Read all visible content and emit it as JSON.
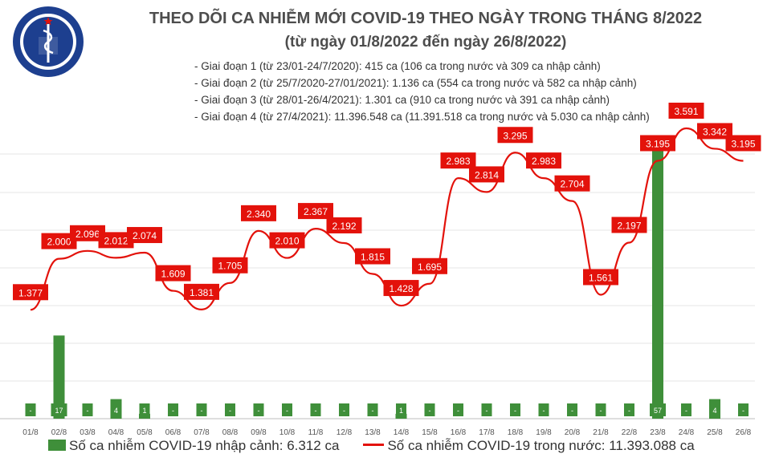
{
  "logo": {
    "top_text": "BỘ Y TẾ",
    "bottom_text": "MINISTRY OF HEALTH"
  },
  "title": {
    "line1": "THEO DÕI CA NHIỄM MỚI COVID-19 THEO NGÀY TRONG THÁNG 8/2022",
    "line2": "(từ ngày 01/8/2022 đến ngày 26/8/2022)"
  },
  "stages": [
    "- Giai đoạn 1 (từ 23/01-24/7/2020): 415 ca (106 ca trong nước và 309 ca nhập cảnh)",
    "- Giai đoạn 2 (từ 25/7/2020-27/01/2021): 1.136 ca (554 ca trong nước và 582 ca nhập cảnh)",
    "- Giai đoạn 3 (từ 28/01-26/4/2021): 1.301 ca (910 ca trong nước và 391 ca nhập cảnh)",
    "- Giai đoạn 4 (từ 27/4/2021): 11.396.548 ca (11.391.518 ca trong nước và 5.030 ca nhập cảnh)"
  ],
  "legend": {
    "imported": "Số ca nhiễm COVID-19 nhập cảnh: 6.312 ca",
    "domestic": "Số ca nhiễm COVID-19 trong nước: 11.393.088 ca"
  },
  "colors": {
    "bar": "#3f8f3a",
    "line": "#e3120b",
    "label_bg": "#e3120b",
    "title": "#4d4d4d"
  },
  "chart_data": {
    "type": "bar+line",
    "categories": [
      "01/8",
      "02/8",
      "03/8",
      "04/8",
      "05/8",
      "06/8",
      "07/8",
      "08/8",
      "09/8",
      "10/8",
      "11/8",
      "12/8",
      "13/8",
      "14/8",
      "15/8",
      "16/8",
      "17/8",
      "18/8",
      "19/8",
      "20/8",
      "21/8",
      "22/8",
      "23/8",
      "24/8",
      "25/8",
      "26/8"
    ],
    "series": [
      {
        "name": "Số ca nhiễm COVID-19 nhập cảnh",
        "type": "bar",
        "values": [
          0,
          17,
          0,
          4,
          1,
          0,
          0,
          0,
          0,
          0,
          0,
          0,
          0,
          1,
          0,
          0,
          0,
          0,
          0,
          0,
          0,
          0,
          57,
          0,
          4,
          0
        ],
        "labels": [
          "-",
          "17",
          "-",
          "4",
          "1",
          "-",
          "-",
          "-",
          "-",
          "-",
          "-",
          "-",
          "-",
          "1",
          "-",
          "-",
          "-",
          "-",
          "-",
          "-",
          "-",
          "-",
          "57",
          "-",
          "4",
          "-"
        ]
      },
      {
        "name": "Số ca nhiễm COVID-19 trong nước",
        "type": "line",
        "values": [
          1377,
          2000,
          2096,
          2012,
          2074,
          1609,
          1381,
          1705,
          2340,
          2010,
          2367,
          2192,
          1815,
          1428,
          1695,
          2983,
          2814,
          3295,
          2983,
          2704,
          1561,
          2197,
          3195,
          3591,
          3342,
          3195
        ],
        "labels": [
          "1.377",
          "2.000",
          "2.096",
          "2.012",
          "2.074",
          "1.609",
          "1.381",
          "1.705",
          "2.340",
          "2.010",
          "2.367",
          "2.192",
          "1.815",
          "1.428",
          "1.695",
          "2.983",
          "2.814",
          "3.295",
          "2.983",
          "2.704",
          "1.561",
          "2.197",
          "3.195",
          "3.591",
          "3.342",
          "3.195"
        ]
      }
    ],
    "grid": true,
    "legend_position": "bottom"
  }
}
